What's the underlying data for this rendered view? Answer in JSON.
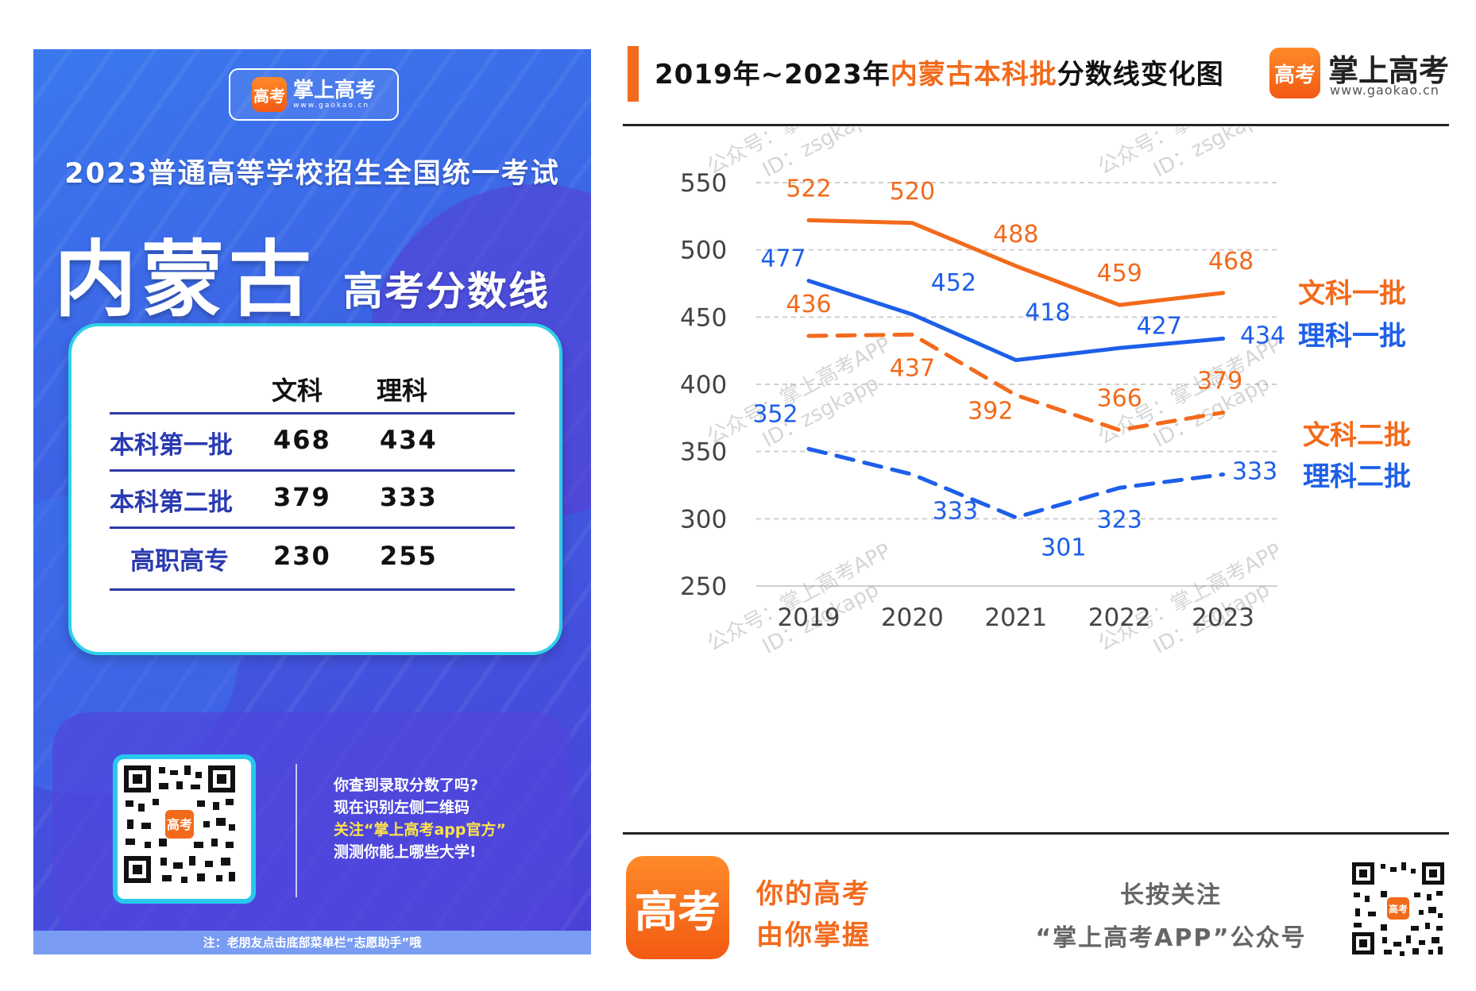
{
  "poster": {
    "logo_name": "掌上高考",
    "logo_url": "www.gaokao.cn",
    "logo_mark": "高考",
    "exam_title": "2023普通高等学校招生全国统一考试",
    "province": "内蒙古",
    "province_sub": "高考分数线",
    "table": {
      "headers": [
        "文科",
        "理科"
      ],
      "rows": [
        {
          "label": "本科第一批",
          "wenke": "468",
          "like": "434"
        },
        {
          "label": "本科第二批",
          "wenke": "379",
          "like": "333"
        },
        {
          "label": "高职高专",
          "wenke": "230",
          "like": "255"
        }
      ]
    },
    "promo_lines": [
      "你查到录取分数了吗?",
      "现在识别左侧二维码",
      "关注“掌上高考app官方”",
      "测测你能上哪些大学!"
    ],
    "footer_note": "注：老朋友点击底部菜单栏“志愿助手”哦"
  },
  "chart_header": {
    "title_prefix": "2019年~2023年",
    "title_highlight": "内蒙古本科批",
    "title_suffix": "分数线变化图",
    "brand_name": "掌上高考",
    "brand_url": "www.gaokao.cn",
    "brand_mark": "高考"
  },
  "chart_data": {
    "type": "line",
    "title": "2019年~2023年内蒙古本科批分数线变化图",
    "categories": [
      "2019",
      "2020",
      "2021",
      "2022",
      "2023"
    ],
    "ylim": [
      250,
      550
    ],
    "yticks": [
      250,
      300,
      350,
      400,
      450,
      500,
      550
    ],
    "grid": true,
    "series": [
      {
        "name": "文科一批",
        "values": [
          522,
          520,
          488,
          459,
          468
        ],
        "color": "#f26a1b",
        "dashed": false
      },
      {
        "name": "理科一批",
        "values": [
          477,
          452,
          418,
          427,
          434
        ],
        "color": "#1d5fe8",
        "dashed": false
      },
      {
        "name": "文科二批",
        "values": [
          436,
          437,
          392,
          366,
          379
        ],
        "color": "#f26a1b",
        "dashed": true
      },
      {
        "name": "理科二批",
        "values": [
          352,
          333,
          301,
          323,
          333
        ],
        "color": "#1d5fe8",
        "dashed": true
      }
    ],
    "legend_position": "right"
  },
  "watermark": {
    "line1": "公众号：掌上高考APP",
    "line2": "ID：zsgkapp"
  },
  "footer": {
    "logo_mark": "高考",
    "slogan1": "你的高考",
    "slogan2": "由你掌握",
    "follow1": "长按关注",
    "follow2": "“掌上高考APP”公众号"
  },
  "colors": {
    "orange": "#f26a1b",
    "blue": "#1d5fe8",
    "poster_blue": "#3d5fe3",
    "card_border": "#2fd0e8"
  }
}
